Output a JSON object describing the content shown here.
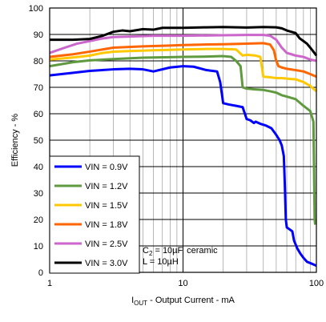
{
  "chart_data": {
    "type": "line",
    "xlabel_sub": "OUT",
    "xlabel_prefix": "I",
    "xlabel_rest": " - Output Current - mA",
    "ylabel": "Efficiency - %",
    "xscale": "log",
    "xlim": [
      1,
      100
    ],
    "ylim": [
      0,
      100
    ],
    "xticks": [
      1,
      10,
      100
    ],
    "yticks": [
      0,
      10,
      20,
      30,
      40,
      50,
      60,
      70,
      80,
      90,
      100
    ],
    "grid": true,
    "legend_position": "bottom-left",
    "annotation": {
      "line1_prefix": "C",
      "line1_sub": "2",
      "line1_rest": " = 10µF, ceramic",
      "line2": "L = 10µH"
    },
    "series": [
      {
        "name": "VIN = 0.9V",
        "color": "#0000ff",
        "points": [
          [
            1,
            74.5
          ],
          [
            1.5,
            75.5
          ],
          [
            2,
            76.2
          ],
          [
            3,
            76.8
          ],
          [
            4,
            77
          ],
          [
            5,
            76.8
          ],
          [
            6,
            76
          ],
          [
            8,
            77.5
          ],
          [
            10,
            78
          ],
          [
            12,
            77.8
          ],
          [
            15,
            76.5
          ],
          [
            18,
            76
          ],
          [
            19,
            72
          ],
          [
            20,
            64
          ],
          [
            22,
            63.5
          ],
          [
            25,
            63
          ],
          [
            28,
            62.5
          ],
          [
            30,
            58
          ],
          [
            32,
            57.5
          ],
          [
            34,
            56.5
          ],
          [
            35,
            57
          ],
          [
            38,
            56.2
          ],
          [
            42,
            55.5
          ],
          [
            46,
            54.5
          ],
          [
            50,
            52
          ],
          [
            53,
            50
          ],
          [
            55,
            48
          ],
          [
            57,
            44
          ],
          [
            58,
            33
          ],
          [
            59,
            20
          ],
          [
            60,
            17
          ],
          [
            64,
            16
          ],
          [
            66,
            15.5
          ],
          [
            68,
            12
          ],
          [
            72,
            9
          ],
          [
            76,
            7
          ],
          [
            80,
            5.5
          ],
          [
            85,
            4
          ],
          [
            90,
            3.5
          ],
          [
            95,
            3
          ],
          [
            100,
            2.5
          ]
        ]
      },
      {
        "name": "VIN = 1.2V",
        "color": "#5f9a3e",
        "points": [
          [
            1,
            78
          ],
          [
            1.5,
            79.5
          ],
          [
            2,
            80.2
          ],
          [
            3,
            80.7
          ],
          [
            5,
            81.2
          ],
          [
            8,
            81.4
          ],
          [
            10,
            81.5
          ],
          [
            14,
            81.6
          ],
          [
            20,
            81.8
          ],
          [
            23,
            81.5
          ],
          [
            25,
            80
          ],
          [
            27,
            78
          ],
          [
            28,
            70
          ],
          [
            30,
            69.5
          ],
          [
            35,
            69.2
          ],
          [
            40,
            69
          ],
          [
            45,
            68.5
          ],
          [
            50,
            68
          ],
          [
            55,
            67
          ],
          [
            60,
            66.5
          ],
          [
            70,
            65.5
          ],
          [
            80,
            63
          ],
          [
            85,
            62
          ],
          [
            90,
            61
          ],
          [
            95,
            57
          ],
          [
            96,
            40
          ],
          [
            97,
            20
          ],
          [
            98,
            18
          ]
        ]
      },
      {
        "name": "VIN = 1.5V",
        "color": "#ffc800",
        "points": [
          [
            1,
            80.5
          ],
          [
            1.5,
            81.3
          ],
          [
            2,
            82
          ],
          [
            2.5,
            83
          ],
          [
            3,
            83.5
          ],
          [
            4,
            83.7
          ],
          [
            6,
            84
          ],
          [
            10,
            84.3
          ],
          [
            15,
            84.5
          ],
          [
            20,
            84.5
          ],
          [
            25,
            84.3
          ],
          [
            28,
            82
          ],
          [
            30,
            82.3
          ],
          [
            35,
            82
          ],
          [
            38,
            81.5
          ],
          [
            40,
            74
          ],
          [
            45,
            73.8
          ],
          [
            50,
            73.5
          ],
          [
            55,
            73.5
          ],
          [
            60,
            73.3
          ],
          [
            70,
            73
          ],
          [
            80,
            72
          ],
          [
            90,
            70.5
          ],
          [
            100,
            68.5
          ]
        ]
      },
      {
        "name": "VIN = 1.8V",
        "color": "#ff6600",
        "points": [
          [
            1,
            81.5
          ],
          [
            1.5,
            82.5
          ],
          [
            2,
            83.5
          ],
          [
            3,
            85
          ],
          [
            5,
            85.5
          ],
          [
            8,
            85.8
          ],
          [
            10,
            86
          ],
          [
            15,
            86.2
          ],
          [
            20,
            86.3
          ],
          [
            30,
            86.5
          ],
          [
            40,
            86.7
          ],
          [
            45,
            86.2
          ],
          [
            48,
            84
          ],
          [
            50,
            80
          ],
          [
            52,
            78
          ],
          [
            55,
            77.5
          ],
          [
            60,
            77
          ],
          [
            70,
            76.5
          ],
          [
            80,
            76
          ],
          [
            90,
            75
          ],
          [
            100,
            74
          ]
        ]
      },
      {
        "name": "VIN = 2.5V",
        "color": "#cc66cc",
        "points": [
          [
            1,
            83
          ],
          [
            1.3,
            85
          ],
          [
            1.6,
            86.5
          ],
          [
            2,
            87.5
          ],
          [
            2.5,
            88.5
          ],
          [
            3,
            89
          ],
          [
            4,
            89.2
          ],
          [
            6,
            89.5
          ],
          [
            10,
            89.5
          ],
          [
            20,
            89.7
          ],
          [
            30,
            89.8
          ],
          [
            40,
            89.8
          ],
          [
            45,
            89.5
          ],
          [
            50,
            88
          ],
          [
            55,
            85
          ],
          [
            60,
            83
          ],
          [
            65,
            82.5
          ],
          [
            70,
            82
          ],
          [
            80,
            81.5
          ],
          [
            90,
            80.5
          ],
          [
            100,
            80
          ]
        ]
      },
      {
        "name": "VIN = 3.0V",
        "color": "#000000",
        "points": [
          [
            1,
            88
          ],
          [
            1.5,
            88
          ],
          [
            2,
            88.3
          ],
          [
            2.5,
            89.5
          ],
          [
            3,
            91
          ],
          [
            3.5,
            91.5
          ],
          [
            4,
            91.2
          ],
          [
            5,
            92
          ],
          [
            6,
            91.8
          ],
          [
            7,
            92.5
          ],
          [
            10,
            92.5
          ],
          [
            15,
            92.7
          ],
          [
            20,
            92.8
          ],
          [
            30,
            92.6
          ],
          [
            40,
            92.8
          ],
          [
            50,
            92.7
          ],
          [
            55,
            92.3
          ],
          [
            60,
            91.5
          ],
          [
            70,
            90.5
          ],
          [
            75,
            88.5
          ],
          [
            80,
            87.5
          ],
          [
            85,
            86.5
          ],
          [
            90,
            85
          ],
          [
            95,
            83.5
          ],
          [
            100,
            82
          ]
        ]
      }
    ]
  }
}
